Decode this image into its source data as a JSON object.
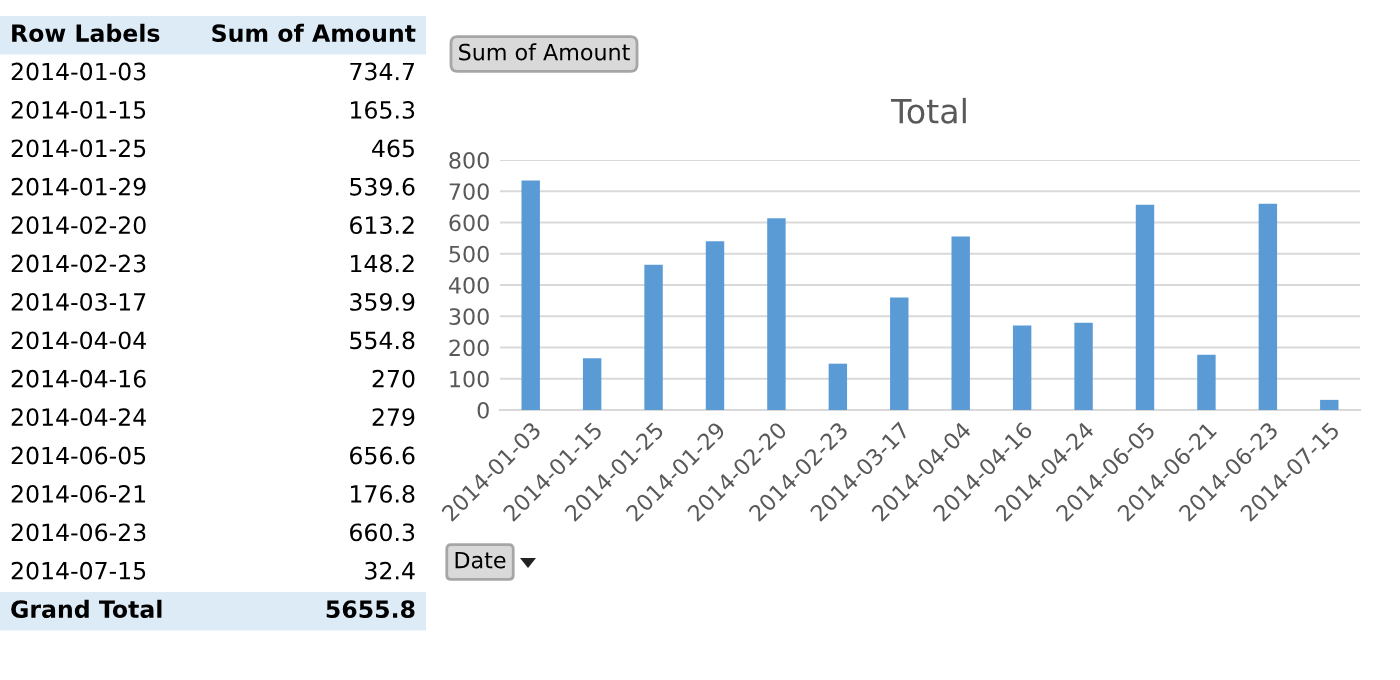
{
  "chart_data": [
    {
      "type": "other",
      "categories": [
        "2014-01-03",
        "2014-01-15",
        "2014-01-25",
        "2014-01-29",
        "2014-02-20",
        "2014-02-23",
        "2014-03-17",
        "2014-04-04",
        "2014-04-16",
        "2014-04-24",
        "2014-06-05",
        "2014-06-21",
        "2014-06-23",
        "2014-07-15"
      ],
      "values": [
        734.7,
        165.3,
        465,
        539.6,
        613.2,
        148.2,
        359.9,
        554.8,
        270,
        279,
        656.6,
        176.8,
        660.3,
        32.4
      ],
      "data_labels": true,
      "annotations": [
        "Row Labels",
        "Sum of Amount",
        "Grand Total",
        "5655.8"
      ]
    },
    {
      "type": "bar",
      "title": "Total",
      "categories": [
        "2014-01-03",
        "2014-01-15",
        "2014-01-25",
        "2014-01-29",
        "2014-02-20",
        "2014-02-23",
        "2014-03-17",
        "2014-04-04",
        "2014-04-16",
        "2014-04-24",
        "2014-06-05",
        "2014-06-21",
        "2014-06-23",
        "2014-07-15"
      ],
      "values": [
        734.7,
        165.3,
        465,
        539.6,
        613.2,
        148.2,
        359.9,
        554.8,
        270,
        279,
        656.6,
        176.8,
        660.3,
        32.4
      ],
      "color": "#5b9bd5",
      "ylim": [
        0,
        800
      ],
      "yticks": [
        0,
        100,
        200,
        300,
        400,
        500,
        600,
        700,
        800
      ],
      "grid": "y",
      "annotations": [
        "Sum of Amount",
        "Date"
      ]
    }
  ]
}
